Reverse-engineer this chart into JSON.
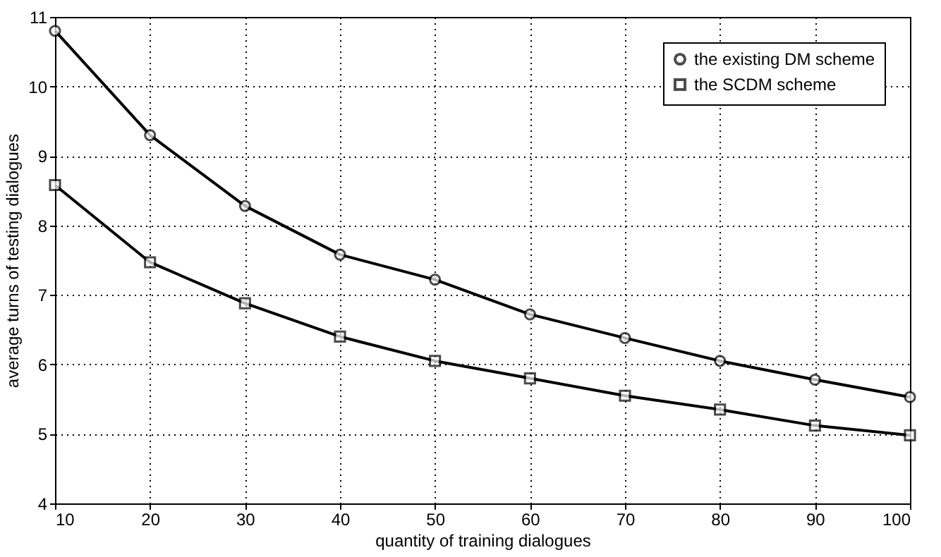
{
  "chart_data": {
    "type": "line",
    "xlabel": "quantity of training dialogues",
    "ylabel": "average turns of testing dialogues",
    "x": [
      10,
      20,
      30,
      40,
      50,
      60,
      70,
      80,
      90,
      100
    ],
    "series": [
      {
        "name": "the existing DM scheme",
        "color": "#000000",
        "marker": "circle",
        "values": [
          10.8,
          9.3,
          8.28,
          7.58,
          7.22,
          6.72,
          6.38,
          6.05,
          5.78,
          5.53
        ]
      },
      {
        "name": "the SCDM scheme",
        "color": "#000000",
        "marker": "square",
        "values": [
          8.58,
          7.47,
          6.88,
          6.4,
          6.05,
          5.8,
          5.55,
          5.35,
          5.12,
          4.98
        ]
      }
    ],
    "xlim": [
      10,
      100
    ],
    "xticks": [
      10,
      20,
      30,
      40,
      50,
      60,
      70,
      80,
      90,
      100
    ],
    "ylim": [
      4,
      11
    ],
    "yticks": [
      4,
      5,
      6,
      7,
      8,
      9,
      10,
      11
    ],
    "grid": true,
    "legend": "top right",
    "line_style": "solid"
  }
}
